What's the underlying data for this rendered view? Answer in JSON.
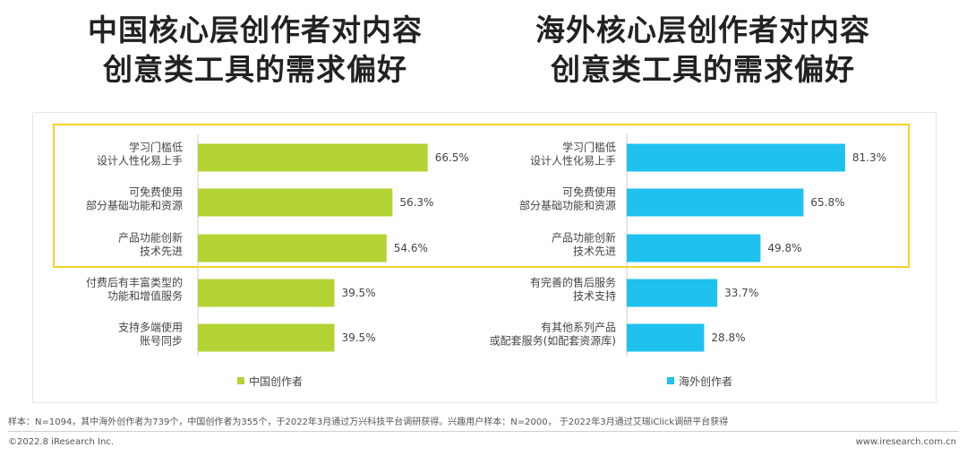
{
  "titles": {
    "left": [
      "中国核心层创作者对内容",
      "创意类工具的需求偏好"
    ],
    "right": [
      "海外核心层创作者对内容",
      "创意类工具的需求偏好"
    ]
  },
  "chart_data": [
    {
      "type": "bar",
      "orientation": "horizontal",
      "title": "中国核心层创作者对内容创意类工具的需求偏好",
      "categories": [
        [
          "学习门槛低",
          "设计人性化易上手"
        ],
        [
          "可免费使用",
          "部分基础功能和资源"
        ],
        [
          "产品功能创新",
          "技术先进"
        ],
        [
          "付费后有丰富类型的",
          "功能和增值服务"
        ],
        [
          "支持多端使用",
          "账号同步"
        ]
      ],
      "series": [
        {
          "name": "中国创作者",
          "color": "#b3d334",
          "values": [
            66.5,
            56.3,
            54.6,
            39.5,
            39.5
          ]
        }
      ],
      "value_labels": [
        "66.5%",
        "56.3%",
        "54.6%",
        "39.5%",
        "39.5%"
      ],
      "xlim": [
        0,
        100
      ],
      "legend": "bottom-left",
      "grid": false
    },
    {
      "type": "bar",
      "orientation": "horizontal",
      "title": "海外核心层创作者对内容创意类工具的需求偏好",
      "categories": [
        [
          "学习门槛低",
          "设计人性化易上手"
        ],
        [
          "可免费使用",
          "部分基础功能和资源"
        ],
        [
          "产品功能创新",
          "技术先进"
        ],
        [
          "有完善的售后服务",
          "技术支持"
        ],
        [
          "有其他系列产品",
          "或配套服务(如配套资源库)"
        ]
      ],
      "series": [
        {
          "name": "海外创作者",
          "color": "#1fc1ee",
          "values": [
            81.3,
            65.8,
            49.8,
            33.7,
            28.8
          ]
        }
      ],
      "value_labels": [
        "81.3%",
        "65.8%",
        "49.8%",
        "33.7%",
        "28.8%"
      ],
      "xlim": [
        0,
        100
      ],
      "legend": "bottom-left",
      "grid": false
    }
  ],
  "footnote": "样本：N=1094，其中海外创作者为739个，中国创作者为355个，于2022年3月通过万兴科技平台调研获得。兴趣用户样本：N=2000， 于2022年3月通过艾瑞iClick调研平台获得",
  "footer": {
    "left": "©2022.8 iResearch Inc.",
    "right": "www.iresearch.com.cn"
  }
}
